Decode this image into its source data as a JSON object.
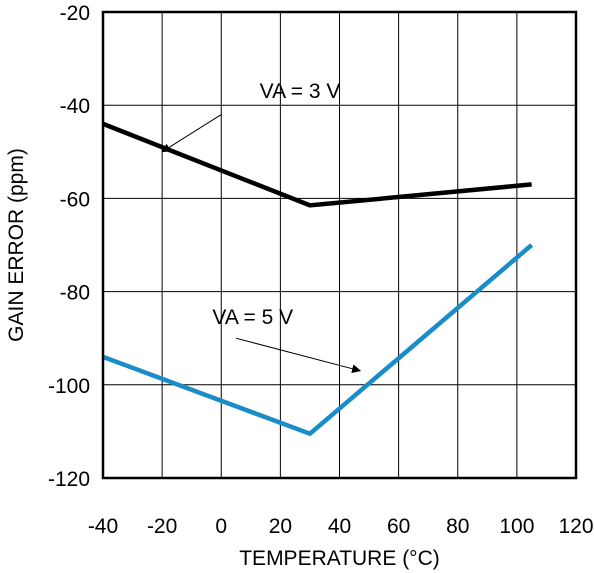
{
  "chart_data": {
    "type": "line",
    "xlabel": "TEMPERATURE (°C)",
    "ylabel": "GAIN ERROR (ppm)",
    "xlim": [
      -40,
      120
    ],
    "ylim": [
      -120,
      -20
    ],
    "xticks": [
      -40,
      -20,
      0,
      20,
      40,
      60,
      80,
      100,
      120
    ],
    "yticks": [
      -20,
      -40,
      -60,
      -80,
      -100,
      -120
    ],
    "grid": true,
    "series": [
      {
        "name": "VA = 3 V",
        "color": "#000000",
        "x": [
          -40,
          30,
          105
        ],
        "y": [
          -44,
          -61.5,
          -57
        ]
      },
      {
        "name": "VA = 5 V",
        "color": "#1a8cc8",
        "x": [
          -40,
          30,
          105
        ],
        "y": [
          -94,
          -110.5,
          -70
        ]
      }
    ],
    "annotations": [
      {
        "text": "VA = 3 V",
        "series": 0,
        "label_at": [
          13,
          -38.5
        ],
        "arrow_from": [
          0,
          -42
        ],
        "arrow_to": [
          -20,
          -50
        ]
      },
      {
        "text": "VA = 5 V",
        "series": 1,
        "label_at": [
          -3,
          -87
        ],
        "arrow_from": [
          5,
          -90
        ],
        "arrow_to": [
          47,
          -97
        ]
      }
    ]
  }
}
